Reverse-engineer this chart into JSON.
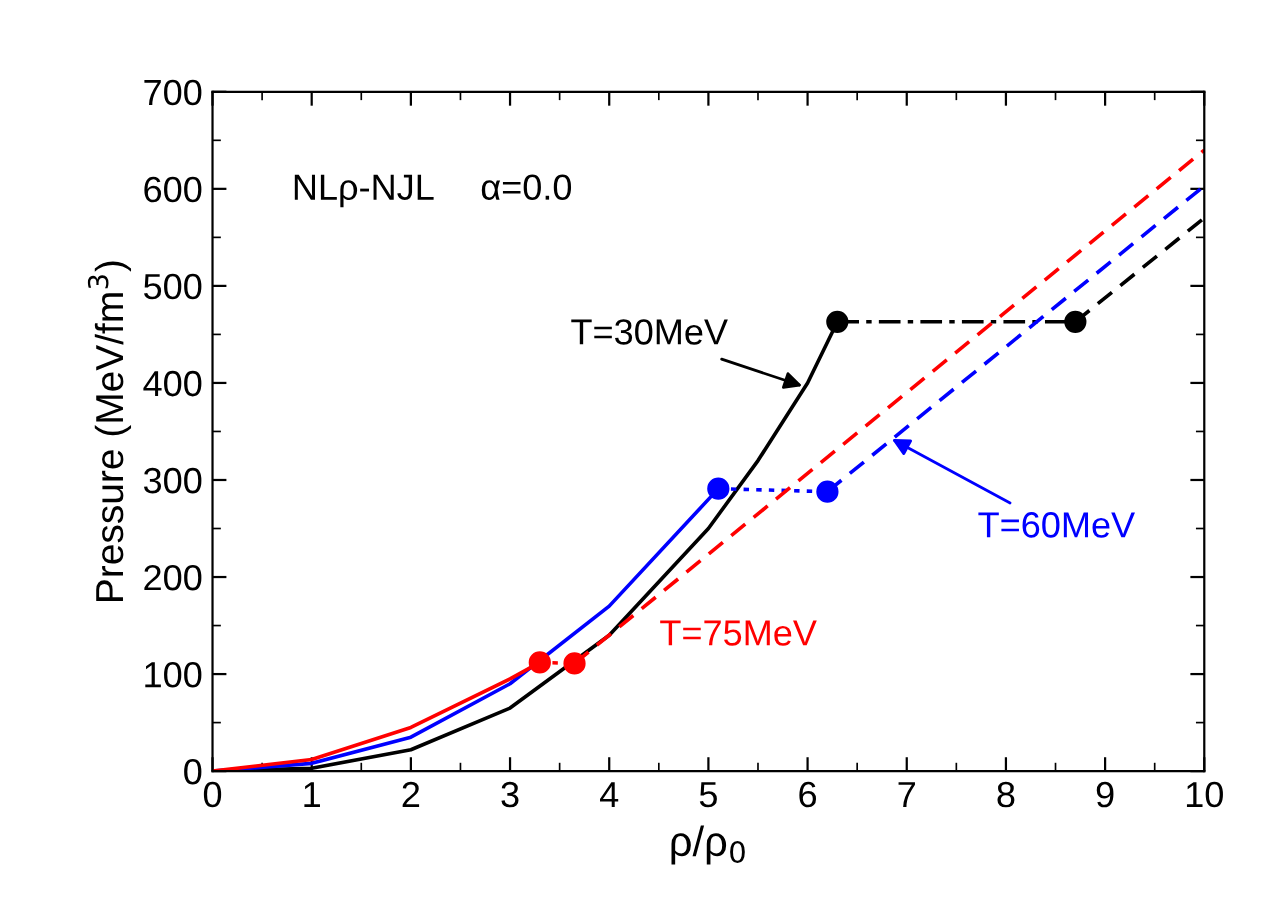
{
  "chart_data": {
    "type": "line",
    "xlabel": "ρ/ρ$_{0}$",
    "ylabel": "Pressure (MeV/fm$^{3}$)",
    "xlim": [
      0,
      10
    ],
    "ylim": [
      0,
      700
    ],
    "xticks": [
      0,
      1,
      2,
      3,
      4,
      5,
      6,
      7,
      8,
      9,
      10
    ],
    "yticks": [
      0,
      100,
      200,
      300,
      400,
      500,
      600,
      700
    ],
    "grid": false,
    "legend": false,
    "series": [
      {
        "color": "#000000",
        "line_style": "solid",
        "marker": "none",
        "x": [
          0,
          1,
          2,
          3,
          4,
          5,
          5.5,
          6,
          6.3
        ],
        "values": [
          0,
          3,
          22,
          65,
          140,
          250,
          320,
          400,
          463
        ]
      },
      {
        "color": "#000000",
        "line_style": "dashdot",
        "marker": "circle",
        "x": [
          6.3,
          8.7
        ],
        "values": [
          463,
          463
        ]
      },
      {
        "color": "#000000",
        "line_style": "dashed",
        "marker": "none",
        "x": [
          8.7,
          10
        ],
        "values": [
          463,
          570
        ]
      },
      {
        "color": "#0000ff",
        "line_style": "solid",
        "marker": "none",
        "x": [
          0,
          1,
          2,
          3,
          4,
          5,
          5.1
        ],
        "values": [
          0,
          8,
          35,
          90,
          170,
          280,
          291
        ]
      },
      {
        "color": "#0000ff",
        "line_style": "dotted",
        "marker": "circle",
        "x": [
          5.1,
          6.2
        ],
        "values": [
          291,
          288
        ]
      },
      {
        "color": "#0000ff",
        "line_style": "dashed",
        "marker": "none",
        "x": [
          6.2,
          10
        ],
        "values": [
          288,
          603
        ]
      },
      {
        "color": "#ff0000",
        "line_style": "solid",
        "marker": "none",
        "x": [
          0,
          1,
          2,
          3,
          3.3
        ],
        "values": [
          0,
          12,
          45,
          95,
          112
        ]
      },
      {
        "color": "#ff0000",
        "line_style": "dotted",
        "marker": "circle",
        "x": [
          3.3,
          3.65
        ],
        "values": [
          112,
          111
        ]
      },
      {
        "color": "#ff0000",
        "line_style": "dashed",
        "marker": "none",
        "x": [
          3.65,
          10
        ],
        "values": [
          111,
          640
        ]
      }
    ],
    "annotations": [
      "NLρ-NJL",
      "α=0.0",
      {
        "text": "T=30MeV",
        "x": 6.0,
        "y": 395
      },
      {
        "text": "T=60MeV",
        "x": 6.8,
        "y": 345
      },
      {
        "text": "T=75MeV",
        "x": 5.3,
        "y": 248
      }
    ]
  }
}
